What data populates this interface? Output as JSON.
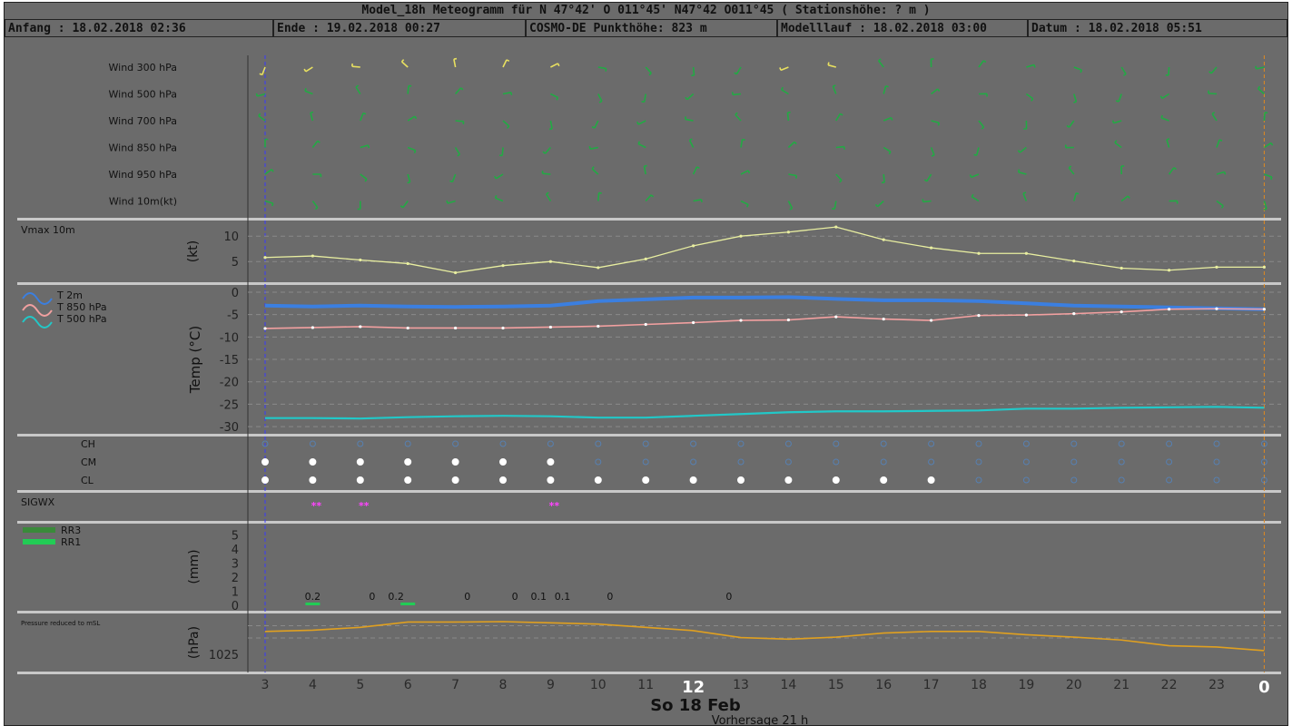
{
  "header": {
    "title": "Model_18h Meteogramm    für   N 47°42' O 011°45'  N47°42 O011°45   ( Stationshöhe: ? m )",
    "start": "Anfang : 18.02.2018 02:36",
    "end": "Ende : 19.02.2018 00:27",
    "model": "COSMO-DE  Punkthöhe: 823 m",
    "run": "Modelllauf : 18.02.2018 03:00",
    "date": "Datum : 18.02.2018 05:51"
  },
  "wind_levels": [
    "Wind 300 hPa",
    "Wind 500 hPa",
    "Wind 700 hPa",
    "Wind 850 hPa",
    "Wind 950 hPa",
    "Wind 10m(kt)"
  ],
  "colors": {
    "panel": "#6b6b6b",
    "grid": "#8a8a8a",
    "separator": "#c8c8c8",
    "vmax": "#e8eea0",
    "t2m": "#3b7fe0",
    "t850": "#f2a0a0",
    "t500": "#22c8c8",
    "pressure": "#e0a020",
    "rain": "#22cc55",
    "sigwx": "#ff44ff",
    "wind_upper": "#e8e060",
    "wind_lower": "#22aa44"
  },
  "chart_data": [
    {
      "type": "line",
      "label": "Vmax 10m",
      "ylabel": "(kt)",
      "yticks": [
        5,
        10
      ],
      "ylim": [
        2,
        12
      ],
      "x": [
        3,
        4,
        5,
        6,
        7,
        8,
        9,
        10,
        11,
        12,
        13,
        14,
        15,
        16,
        17,
        18,
        19,
        20,
        21,
        22,
        23,
        24
      ],
      "values": [
        5.8,
        6.1,
        5.3,
        4.6,
        2.8,
        4.2,
        5.0,
        3.8,
        5.5,
        8.1,
        10.0,
        10.8,
        11.8,
        9.3,
        7.7,
        6.6,
        6.6,
        5.1,
        3.7,
        3.3,
        3.9,
        3.9
      ]
    },
    {
      "type": "line",
      "ylabel": "Temp (°C)",
      "yticks": [
        0,
        -5,
        -10,
        -15,
        -20,
        -25,
        -30
      ],
      "ylim": [
        -31,
        1
      ],
      "x": [
        3,
        4,
        5,
        6,
        7,
        8,
        9,
        10,
        11,
        12,
        13,
        14,
        15,
        16,
        17,
        18,
        19,
        20,
        21,
        22,
        23,
        24
      ],
      "series": [
        {
          "name": "T 2m",
          "values": [
            -3.0,
            -3.2,
            -3.0,
            -3.2,
            -3.3,
            -3.2,
            -3.0,
            -2.0,
            -1.6,
            -1.2,
            -1.2,
            -1.1,
            -1.5,
            -1.8,
            -1.8,
            -2.0,
            -2.5,
            -3.0,
            -3.2,
            -3.4,
            -3.6,
            -3.8
          ]
        },
        {
          "name": "T 850 hPa",
          "values": [
            -8.1,
            -7.9,
            -7.7,
            -8.0,
            -8.0,
            -8.0,
            -7.8,
            -7.6,
            -7.2,
            -6.8,
            -6.3,
            -6.2,
            -5.5,
            -6.0,
            -6.3,
            -5.2,
            -5.1,
            -4.8,
            -4.4,
            -3.8,
            -3.7,
            -3.8
          ]
        },
        {
          "name": "T 500 hPa",
          "values": [
            -28.1,
            -28.1,
            -28.2,
            -27.9,
            -27.7,
            -27.6,
            -27.7,
            -28.0,
            -28.0,
            -27.6,
            -27.2,
            -26.8,
            -26.6,
            -26.6,
            -26.5,
            -26.4,
            -26.0,
            -26.0,
            -25.8,
            -25.7,
            -25.6,
            -25.8
          ]
        }
      ]
    },
    {
      "type": "scatter",
      "rows": [
        "CH",
        "CM",
        "CL"
      ]
    },
    {
      "type": "scatter",
      "label": "SIGWX",
      "x": [
        4,
        5,
        9
      ]
    },
    {
      "type": "bar",
      "ylabel": "(mm)",
      "yticks": [
        0,
        1,
        2,
        3,
        4,
        5
      ],
      "ylim": [
        0,
        5.5
      ],
      "series": [
        {
          "name": "RR3",
          "x": [
            4,
            6
          ],
          "values": [
            0.2,
            0.2
          ]
        },
        {
          "name": "RR1",
          "x": []
        }
      ],
      "labels": [
        {
          "x": 4,
          "text": "0.2"
        },
        {
          "x": 5.25,
          "text": "0"
        },
        {
          "x": 5.75,
          "text": "0.2"
        },
        {
          "x": 7.25,
          "text": "0"
        },
        {
          "x": 8.25,
          "text": "0"
        },
        {
          "x": 8.75,
          "text": "0.1"
        },
        {
          "x": 9.25,
          "text": "0.1"
        },
        {
          "x": 10.25,
          "text": "0"
        },
        {
          "x": 12.75,
          "text": "0"
        }
      ]
    },
    {
      "type": "line",
      "label": "Pressure reduced to mSL",
      "ylabel": "(hPa)",
      "yticks": [
        1025
      ],
      "x": [
        3,
        4,
        5,
        6,
        7,
        8,
        9,
        10,
        11,
        12,
        13,
        14,
        15,
        16,
        17,
        18,
        19,
        20,
        21,
        22,
        23,
        24
      ],
      "values": [
        1030.6,
        1030.9,
        1031.6,
        1032.9,
        1032.9,
        1033.0,
        1032.7,
        1032.4,
        1031.6,
        1030.8,
        1029.1,
        1028.7,
        1029.2,
        1030.2,
        1030.6,
        1030.6,
        1029.8,
        1029.2,
        1028.5,
        1027.1,
        1026.8,
        1025.9
      ]
    }
  ],
  "xaxis": {
    "ticks": [
      "3",
      "4",
      "5",
      "6",
      "7",
      "8",
      "9",
      "10",
      "11",
      "12",
      "13",
      "14",
      "15",
      "16",
      "17",
      "18",
      "19",
      "20",
      "21",
      "22",
      "23",
      "0"
    ],
    "date_label": "So 18 Feb",
    "forecast_label": "Vorhersage 21 h"
  }
}
